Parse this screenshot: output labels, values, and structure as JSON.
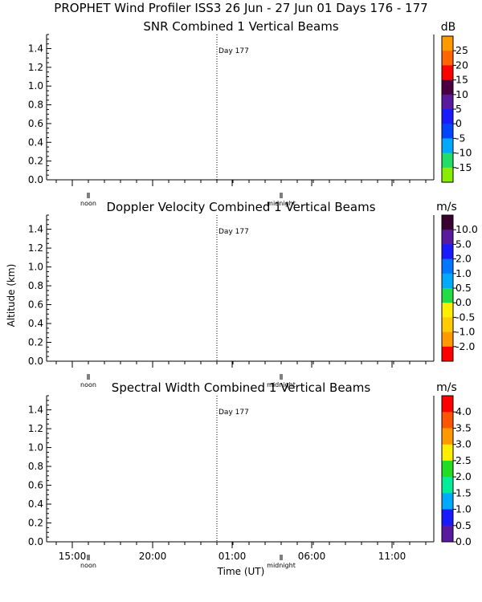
{
  "header": {
    "title": "PROPHET Wind Profiler ISS3  26 Jun - 27 Jun 01 Days 176 - 177"
  },
  "axes": {
    "ylabel": "Altitude (km)",
    "xlabel": "Time (UT)",
    "x_tick_labels": [
      "15:00",
      "20:00",
      "01:00",
      "06:00",
      "11:00"
    ],
    "noon_label": "noon",
    "midnight_label": "midnight",
    "day_marker_label": "Day 177"
  },
  "chart_data": [
    {
      "type": "heatmap",
      "title": "SNR Combined 1 Vertical Beams",
      "ylabel": "Altitude (km)",
      "ylim": [
        0,
        1.55
      ],
      "y_ticks": [
        "0.0",
        "0.2",
        "0.4",
        "0.6",
        "0.8",
        "1.0",
        "1.2",
        "1.4"
      ],
      "x": [],
      "values": [],
      "colorbar": {
        "unit": "dB",
        "labels": [
          "25",
          "20",
          "15",
          "10",
          "5",
          "0",
          "-5",
          "-10",
          "-15"
        ],
        "colors": [
          "#ff9900",
          "#ff6600",
          "#ff0000",
          "#4a0040",
          "#5a1aa0",
          "#1a1aff",
          "#0044ff",
          "#00aaff",
          "#22dd66",
          "#88ee00"
        ]
      }
    },
    {
      "type": "heatmap",
      "title": "Doppler Velocity Combined 1 Vertical Beams",
      "ylabel": "Altitude (km)",
      "ylim": [
        0,
        1.55
      ],
      "y_ticks": [
        "0.0",
        "0.2",
        "0.4",
        "0.6",
        "0.8",
        "1.0",
        "1.2",
        "1.4"
      ],
      "x": [],
      "values": [],
      "colorbar": {
        "unit": "m/s",
        "labels": [
          "10.0",
          "5.0",
          "2.0",
          "1.0",
          "0.5",
          "0.0",
          "-0.5",
          "-1.0",
          "-2.0"
        ],
        "colors": [
          "#3a0030",
          "#5a1aa0",
          "#1a1aff",
          "#0077ff",
          "#00aaff",
          "#22dd44",
          "#ffee00",
          "#ffcc00",
          "#ff9900",
          "#ff0000"
        ]
      }
    },
    {
      "type": "heatmap",
      "title": "Spectral Width Combined 1 Vertical Beams",
      "ylabel": "",
      "ylim": [
        0,
        1.55
      ],
      "y_ticks": [
        "0.0",
        "0.2",
        "0.4",
        "0.6",
        "0.8",
        "1.0",
        "1.2",
        "1.4"
      ],
      "x": [],
      "values": [],
      "colorbar": {
        "unit": "m/s",
        "labels": [
          "4.0",
          "3.5",
          "3.0",
          "2.5",
          "2.0",
          "1.5",
          "1.0",
          "0.5",
          "0.0"
        ],
        "colors": [
          "#ff0000",
          "#ff5500",
          "#ff9900",
          "#ffee00",
          "#22dd22",
          "#00ee99",
          "#00aaff",
          "#1a1aff",
          "#5a1aa0"
        ]
      }
    }
  ]
}
